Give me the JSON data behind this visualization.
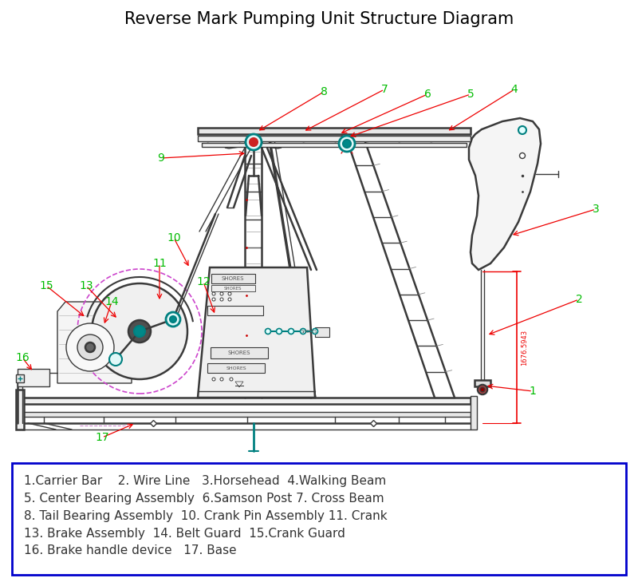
{
  "title": "Reverse Mark Pumping Unit Structure Diagram",
  "title_fontsize": 15,
  "title_color": "#000000",
  "background_color": "#ffffff",
  "diagram_color": "#3a3a3a",
  "label_color": "#00bb00",
  "arrow_color": "#ee0000",
  "dim_color": "#ee0000",
  "legend_box_color": "#0000cc",
  "legend_lines": [
    "1.Carrier Bar    2. Wire Line   3.Horsehead  4.Walking Beam",
    "5. Center Bearing Assembly  6.Samson Post 7. Cross Beam",
    "8. Tail Bearing Assembly  10. Crank Pin Assembly 11. Crank",
    "13. Brake Assembly  14. Belt Guard  15.Crank Guard",
    "16. Brake handle device   17. Base"
  ],
  "legend_fontsize": 11,
  "dim_text": "1676.5943",
  "teal": "#008080",
  "magenta": "#cc44cc",
  "light_gray": "#d0d0d0"
}
